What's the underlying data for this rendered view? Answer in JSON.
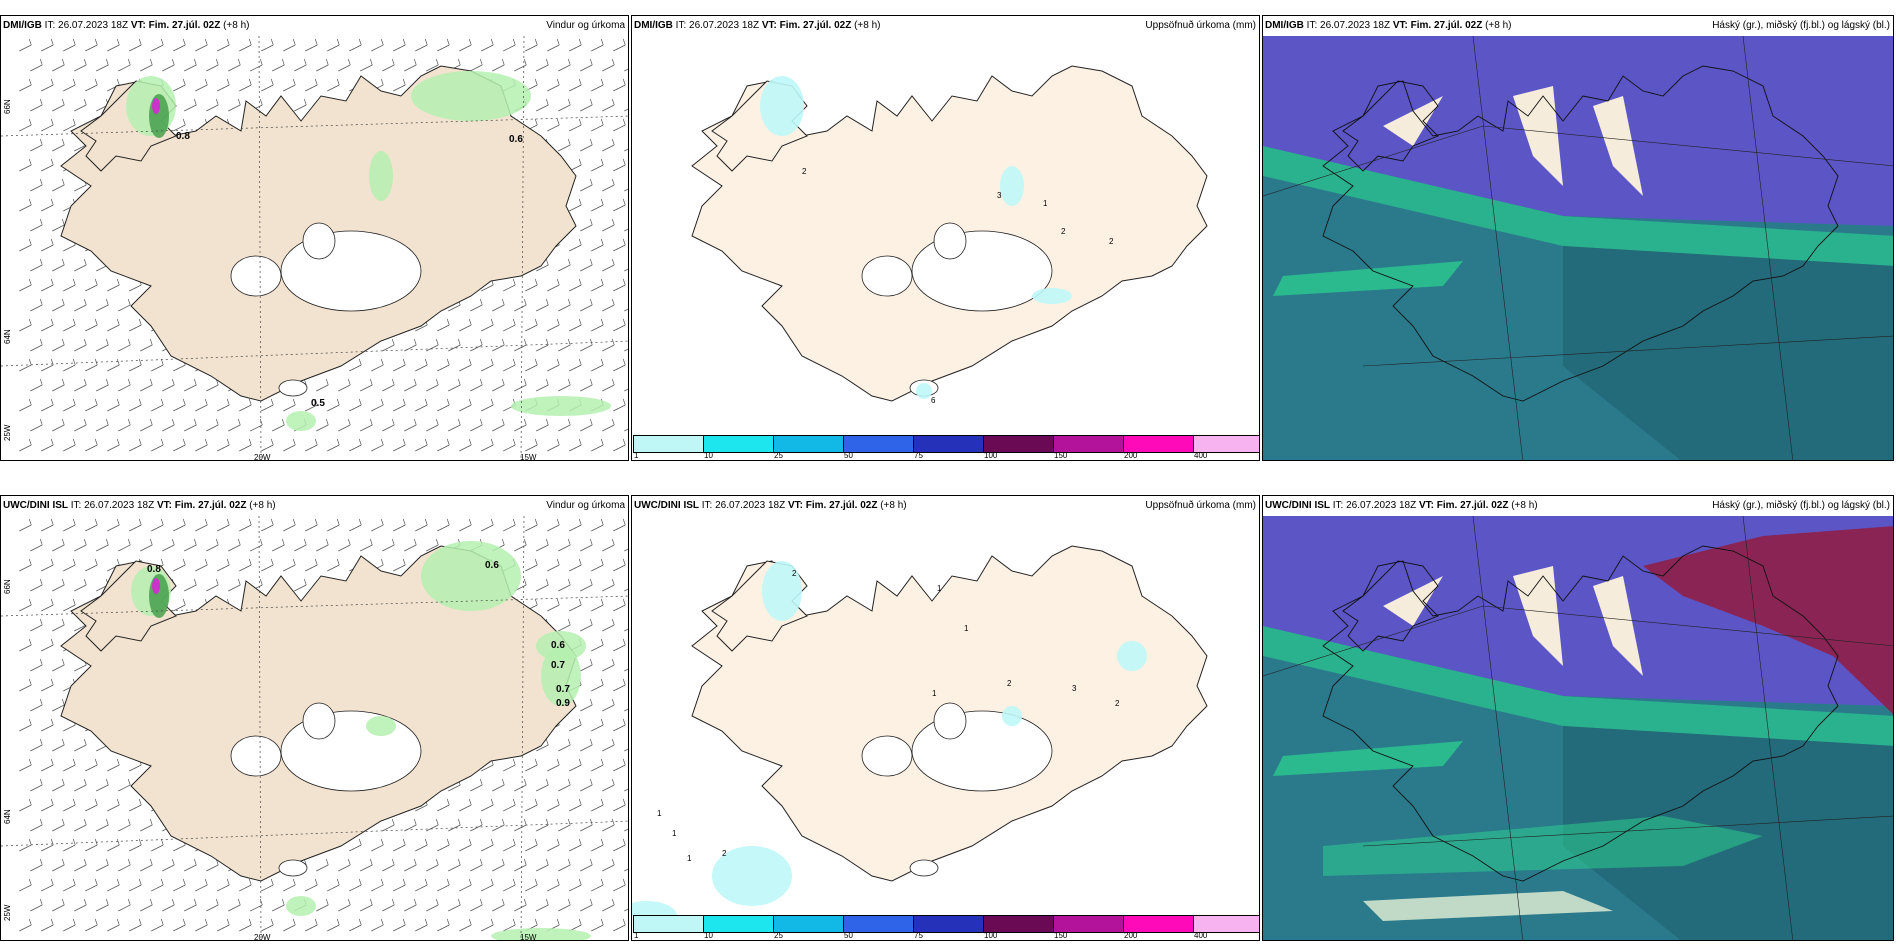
{
  "panels": [
    {
      "source": "DMI/IGB",
      "it": " IT: 26.07.2023 18Z ",
      "vt_label": "VT: Fim. 27.júl. 02Z",
      "lead": " (+8 h)",
      "title": "Vindur og úrkoma",
      "type": "wind",
      "labels": [
        "0.8",
        "0.6",
        "0.5"
      ]
    },
    {
      "source": "DMI/IGB",
      "it": " IT: 26.07.2023 18Z ",
      "vt_label": "VT: Fim. 27.júl. 02Z",
      "lead": " (+8 h)",
      "title": "Uppsöfnuð úrkoma (mm)",
      "type": "precip",
      "labels": [
        "2",
        "3",
        "1",
        "2",
        "2",
        "6"
      ]
    },
    {
      "source": "DMI/IGB",
      "it": " IT: 26.07.2023 18Z ",
      "vt_label": "VT: Fim. 27.júl. 02Z",
      "lead": " (+8 h)",
      "title": "Háský (gr.), miðský (fj.bl.) og lágský (bl.)",
      "type": "cloud"
    },
    {
      "source": "UWC/DINI ISL",
      "it": " IT: 26.07.2023 18Z ",
      "vt_label": "VT: Fim. 27.júl. 02Z",
      "lead": " (+8 h)",
      "title": "Vindur og úrkoma",
      "type": "wind",
      "labels": [
        "0.8",
        "0.6",
        "0.6",
        "0.7",
        "0.7",
        "0.9"
      ]
    },
    {
      "source": "UWC/DINI ISL",
      "it": " IT: 26.07.2023 18Z ",
      "vt_label": "VT: Fim. 27.júl. 02Z",
      "lead": " (+8 h)",
      "title": "Uppsöfnuð úrkoma (mm)",
      "type": "precip",
      "labels": [
        "2",
        "1",
        "1",
        "2",
        "1",
        "3",
        "2",
        "1",
        "1",
        "2",
        "1"
      ]
    },
    {
      "source": "UWC/DINI ISL",
      "it": " IT: 26.07.2023 18Z ",
      "vt_label": "VT: Fim. 27.júl. 02Z",
      "lead": " (+8 h)",
      "title": "Háský (gr.), miðský (fj.bl.) og lágský (bl.)",
      "type": "cloud"
    }
  ],
  "axis": {
    "lat_66": "66N",
    "lat_64": "64N",
    "lon_25": "25W",
    "lon_20": "20W",
    "lon_15": "15W"
  },
  "colorbar": {
    "ticks": [
      "1",
      "10",
      "25",
      "50",
      "75",
      "100",
      "150",
      "200",
      "400"
    ],
    "colors": [
      "#bff7f7",
      "#1de6ef",
      "#12b9e6",
      "#2f63e8",
      "#2531b8",
      "#6a0a55",
      "#b3139b",
      "#ff0ab8",
      "#f7b2f0"
    ]
  },
  "colors": {
    "land": "#f1e3cf",
    "precip_land": "#fdf1e4",
    "rain_green": "#b5f0b0",
    "dark_green": "#3f9a46",
    "magenta": "#cc33cc",
    "cloud_high": "#5b55c6",
    "cloud_mid": "#2a7a8c",
    "cloud_low": "#2bd68e",
    "cloud_dark": "#1f5f6e",
    "cloud_red": "#8f1f48"
  }
}
